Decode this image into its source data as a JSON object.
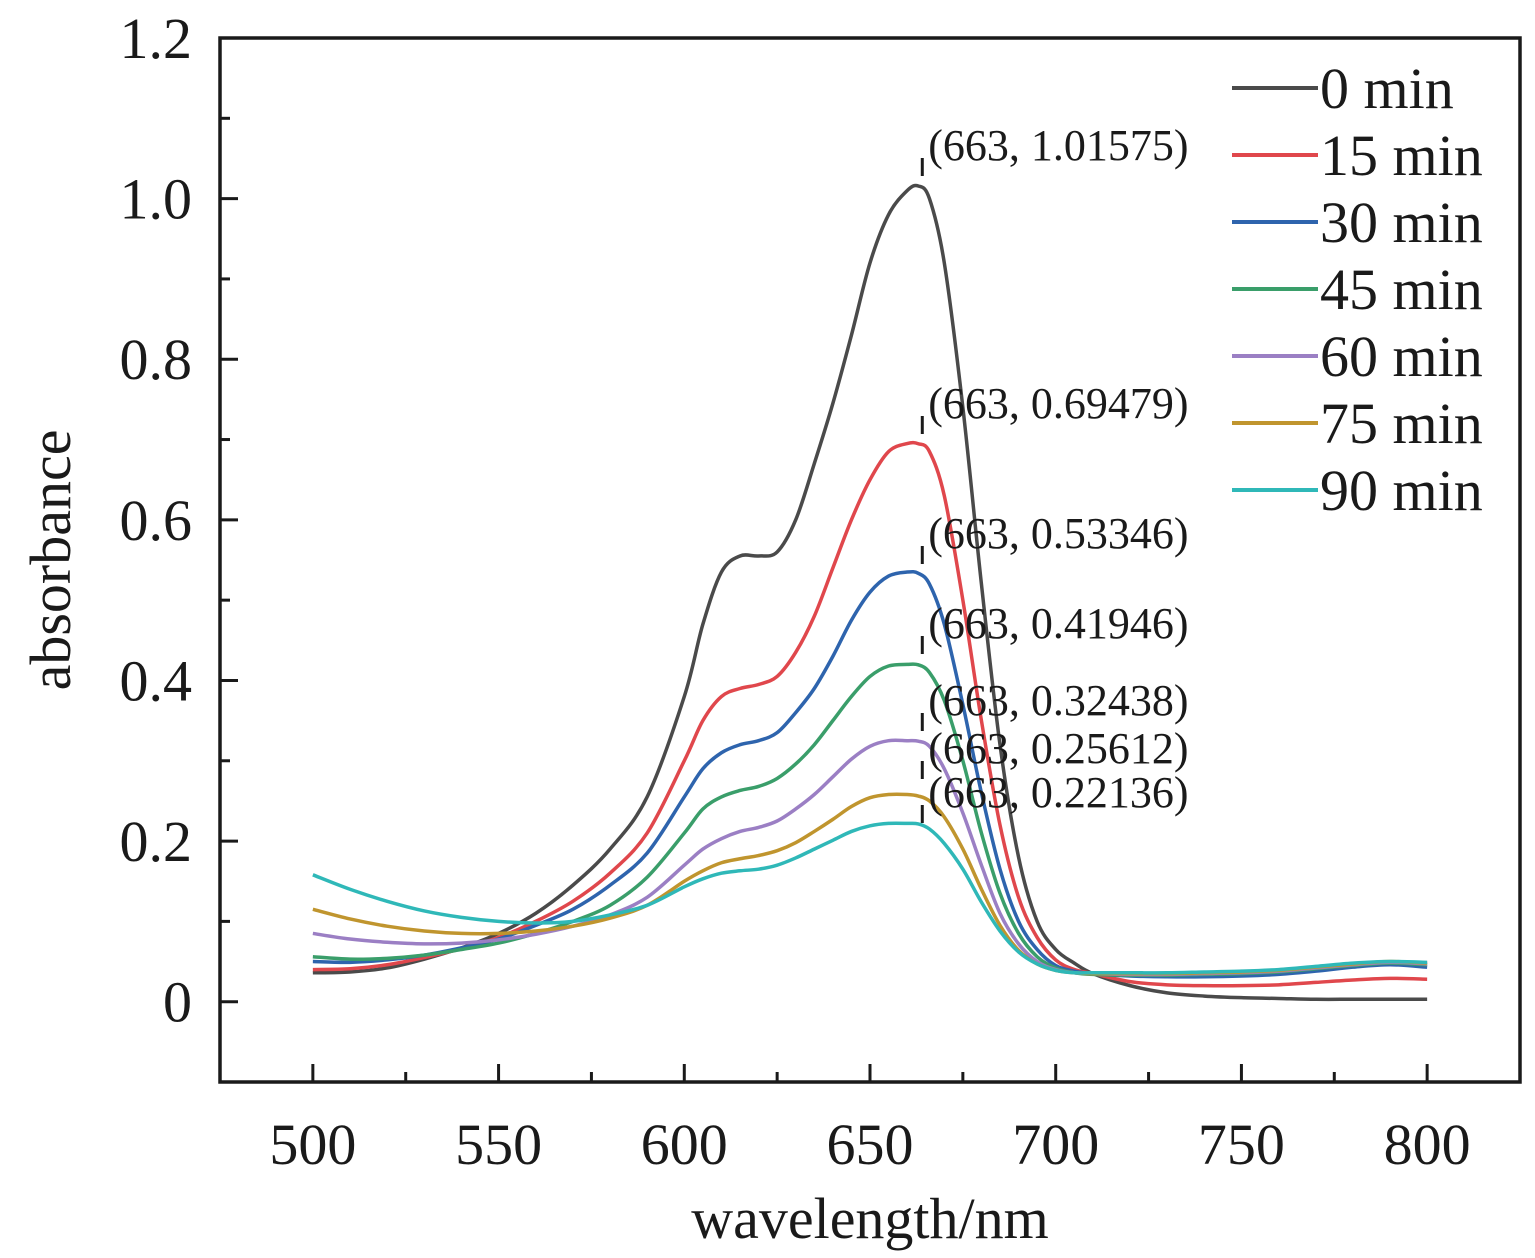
{
  "chart_data": {
    "type": "line",
    "xlabel": "wavelength/nm",
    "ylabel": "absorbance",
    "xlim": [
      475,
      825
    ],
    "ylim": [
      -0.1,
      1.2
    ],
    "x_ticks": [
      500,
      550,
      600,
      650,
      700,
      750,
      800
    ],
    "x_tick_labels": [
      "500",
      "550",
      "600",
      "650",
      "700",
      "750",
      "800"
    ],
    "y_ticks": [
      0,
      0.2,
      0.4,
      0.6,
      0.8,
      1.0,
      1.2
    ],
    "y_tick_labels": [
      "0",
      "0.2",
      "0.4",
      "0.6",
      "0.8",
      "1.0",
      "1.2"
    ],
    "grid": false,
    "legend_position": "top-right",
    "x": [
      500,
      510,
      520,
      530,
      540,
      550,
      560,
      570,
      580,
      590,
      600,
      605,
      610,
      615,
      620,
      625,
      630,
      635,
      640,
      645,
      650,
      655,
      660,
      663,
      666,
      670,
      675,
      680,
      685,
      690,
      695,
      700,
      705,
      710,
      720,
      730,
      740,
      750,
      760,
      770,
      780,
      790,
      800
    ],
    "series": [
      {
        "name": "0 min",
        "color": "#4a4a4a",
        "values": [
          0.036,
          0.037,
          0.042,
          0.053,
          0.067,
          0.085,
          0.11,
          0.145,
          0.19,
          0.255,
          0.38,
          0.47,
          0.535,
          0.555,
          0.555,
          0.56,
          0.6,
          0.67,
          0.745,
          0.83,
          0.92,
          0.98,
          1.01,
          1.01575,
          1.0,
          0.92,
          0.74,
          0.52,
          0.32,
          0.18,
          0.1,
          0.065,
          0.048,
          0.035,
          0.02,
          0.011,
          0.007,
          0.005,
          0.004,
          0.003,
          0.003,
          0.003,
          0.003
        ]
      },
      {
        "name": "15 min",
        "color": "#e0474c",
        "values": [
          0.04,
          0.041,
          0.046,
          0.055,
          0.066,
          0.08,
          0.1,
          0.125,
          0.16,
          0.21,
          0.3,
          0.35,
          0.38,
          0.39,
          0.395,
          0.405,
          0.435,
          0.48,
          0.54,
          0.6,
          0.65,
          0.685,
          0.695,
          0.69479,
          0.685,
          0.63,
          0.5,
          0.35,
          0.22,
          0.13,
          0.08,
          0.052,
          0.04,
          0.035,
          0.025,
          0.021,
          0.02,
          0.02,
          0.021,
          0.024,
          0.027,
          0.029,
          0.028
        ]
      },
      {
        "name": "30 min",
        "color": "#2e64ad",
        "values": [
          0.05,
          0.049,
          0.052,
          0.058,
          0.067,
          0.078,
          0.095,
          0.115,
          0.145,
          0.185,
          0.255,
          0.29,
          0.31,
          0.32,
          0.325,
          0.335,
          0.36,
          0.39,
          0.43,
          0.475,
          0.51,
          0.53,
          0.535,
          0.53346,
          0.52,
          0.47,
          0.37,
          0.26,
          0.165,
          0.1,
          0.065,
          0.045,
          0.038,
          0.035,
          0.032,
          0.031,
          0.031,
          0.032,
          0.034,
          0.038,
          0.043,
          0.046,
          0.043
        ]
      },
      {
        "name": "45 min",
        "color": "#3a9e6a",
        "values": [
          0.056,
          0.053,
          0.054,
          0.058,
          0.065,
          0.073,
          0.085,
          0.1,
          0.12,
          0.155,
          0.21,
          0.24,
          0.255,
          0.263,
          0.268,
          0.278,
          0.296,
          0.32,
          0.35,
          0.38,
          0.405,
          0.418,
          0.42,
          0.41946,
          0.41,
          0.375,
          0.3,
          0.21,
          0.135,
          0.085,
          0.056,
          0.042,
          0.036,
          0.034,
          0.033,
          0.033,
          0.034,
          0.035,
          0.037,
          0.041,
          0.045,
          0.048,
          0.046
        ]
      },
      {
        "name": "60 min",
        "color": "#9b7fc4",
        "values": [
          0.085,
          0.078,
          0.074,
          0.072,
          0.073,
          0.077,
          0.084,
          0.094,
          0.108,
          0.13,
          0.17,
          0.19,
          0.203,
          0.212,
          0.217,
          0.225,
          0.24,
          0.258,
          0.28,
          0.302,
          0.318,
          0.325,
          0.325,
          0.32438,
          0.318,
          0.29,
          0.235,
          0.17,
          0.11,
          0.072,
          0.05,
          0.04,
          0.036,
          0.035,
          0.034,
          0.034,
          0.035,
          0.036,
          0.038,
          0.042,
          0.046,
          0.049,
          0.047
        ]
      },
      {
        "name": "75 min",
        "color": "#c0952e",
        "values": [
          0.115,
          0.103,
          0.094,
          0.088,
          0.085,
          0.085,
          0.088,
          0.094,
          0.104,
          0.12,
          0.15,
          0.163,
          0.173,
          0.178,
          0.182,
          0.188,
          0.198,
          0.212,
          0.227,
          0.243,
          0.254,
          0.258,
          0.258,
          0.25612,
          0.25,
          0.23,
          0.19,
          0.14,
          0.095,
          0.064,
          0.047,
          0.039,
          0.036,
          0.035,
          0.035,
          0.035,
          0.036,
          0.037,
          0.039,
          0.043,
          0.047,
          0.05,
          0.048
        ]
      },
      {
        "name": "90 min",
        "color": "#2fb8b8",
        "values": [
          0.158,
          0.14,
          0.125,
          0.113,
          0.105,
          0.1,
          0.098,
          0.1,
          0.108,
          0.12,
          0.143,
          0.153,
          0.16,
          0.163,
          0.165,
          0.17,
          0.179,
          0.19,
          0.201,
          0.212,
          0.219,
          0.222,
          0.222,
          0.22136,
          0.215,
          0.197,
          0.165,
          0.124,
          0.088,
          0.062,
          0.047,
          0.039,
          0.036,
          0.036,
          0.036,
          0.036,
          0.037,
          0.038,
          0.04,
          0.044,
          0.048,
          0.05,
          0.049
        ]
      }
    ],
    "annotations": [
      {
        "x": 663,
        "y": 1.01575,
        "text": "(663, 1.01575)"
      },
      {
        "x": 663,
        "y": 0.69479,
        "text": "(663, 0.69479)"
      },
      {
        "x": 663,
        "y": 0.53346,
        "text": "(663, 0.53346)"
      },
      {
        "x": 663,
        "y": 0.41946,
        "text": "(663, 0.41946)"
      },
      {
        "x": 663,
        "y": 0.32438,
        "text": "(663, 0.32438)"
      },
      {
        "x": 663,
        "y": 0.25612,
        "text": "(663, 0.25612)"
      },
      {
        "x": 663,
        "y": 0.22136,
        "text": "(663, 0.22136)"
      }
    ]
  }
}
